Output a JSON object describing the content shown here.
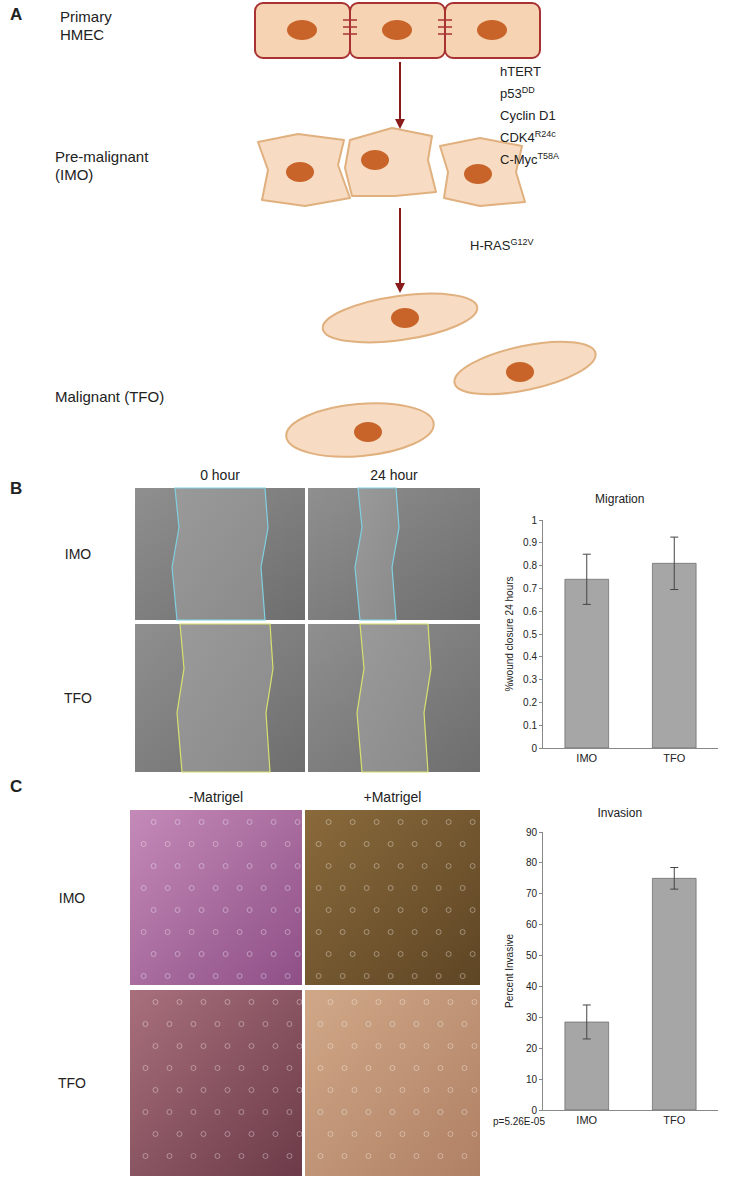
{
  "panels": {
    "A": {
      "label": "A",
      "stages": [
        {
          "lines": [
            "Primary",
            "HMEC"
          ]
        },
        {
          "lines": [
            "Pre-malignant",
            "(IMO)"
          ]
        },
        {
          "lines": [
            "Malignant (TFO)"
          ]
        }
      ],
      "transitions": [
        {
          "genes": [
            {
              "name": "hTERT"
            },
            {
              "name": "p53",
              "sup": "DD"
            },
            {
              "name": "Cyclin D1"
            },
            {
              "name": "CDK4",
              "sup": "R24c"
            },
            {
              "name": "C-Myc",
              "sup": "T58A"
            }
          ]
        },
        {
          "genes": [
            {
              "name": "H-RAS",
              "sup": "G12V"
            }
          ]
        }
      ]
    },
    "B": {
      "label": "B",
      "columns": [
        "0 hour",
        "24 hour"
      ],
      "rows": [
        "IMO",
        "TFO"
      ]
    },
    "C": {
      "label": "C",
      "columns": [
        "-Matrigel",
        "+Matrigel"
      ],
      "rows": [
        "IMO",
        "TFO"
      ]
    }
  },
  "chart_data": [
    {
      "type": "bar",
      "title": "Migration",
      "y_label": "%wound closure 24 hours",
      "categories": [
        "IMO",
        "TFO"
      ],
      "values": [
        0.74,
        0.81
      ],
      "errors": [
        0.11,
        0.115
      ],
      "color": "#a6a6a6",
      "ylim": [
        0,
        1
      ],
      "yticks": [
        0,
        0.1,
        0.2,
        0.3,
        0.4,
        0.5,
        0.6,
        0.7,
        0.8,
        0.9,
        1
      ],
      "grid": false
    },
    {
      "type": "bar",
      "title": "Invasion",
      "y_label": "Percent Invasive",
      "categories": [
        "IMO",
        "TFO"
      ],
      "values": [
        28.5,
        75
      ],
      "errors": [
        5.5,
        3.5
      ],
      "color": "#a6a6a6",
      "ylim": [
        0,
        90
      ],
      "yticks": [
        0,
        10,
        20,
        30,
        40,
        50,
        60,
        70,
        80,
        90
      ],
      "grid": false,
      "annotations": [
        {
          "text": "p=5.26E-05"
        }
      ]
    }
  ]
}
